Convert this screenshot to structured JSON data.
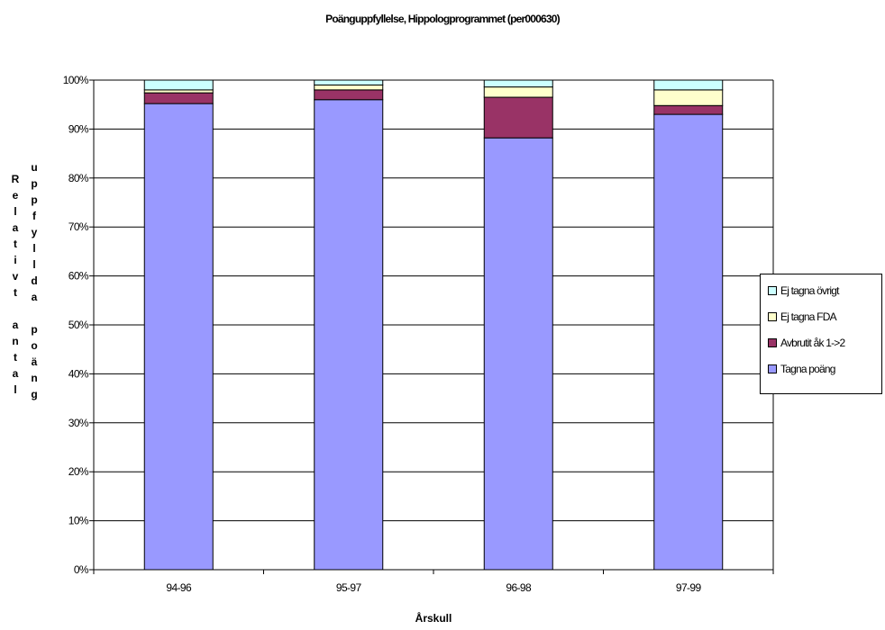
{
  "chart_data": {
    "type": "bar",
    "stacked": true,
    "percent": true,
    "title": "Poänguppfyllelse, Hippologprogrammet (per000630)",
    "xlabel": "Årskull",
    "ylabel_col1": "Relativt antal",
    "ylabel_col2": "uppfyllda poäng",
    "categories": [
      "94-96",
      "95-97",
      "96-98",
      "97-99"
    ],
    "y_ticks": [
      "0%",
      "10%",
      "20%",
      "30%",
      "40%",
      "50%",
      "60%",
      "70%",
      "80%",
      "90%",
      "100%"
    ],
    "ylim": [
      0,
      100
    ],
    "grid": true,
    "legend_position": "right",
    "series": [
      {
        "name": "Tagna poäng",
        "color": "#9999ff",
        "values": [
          95.2,
          96.0,
          88.2,
          93.0
        ]
      },
      {
        "name": "Avbrutit åk 1->2",
        "color": "#993366",
        "values": [
          2.2,
          2.0,
          8.3,
          1.8
        ]
      },
      {
        "name": "Ej tagna FDA",
        "color": "#ffffcc",
        "values": [
          0.6,
          1.0,
          2.1,
          3.2
        ]
      },
      {
        "name": "Ej tagna övrigt",
        "color": "#ccffff",
        "values": [
          2.0,
          1.0,
          1.4,
          2.0
        ]
      }
    ]
  }
}
